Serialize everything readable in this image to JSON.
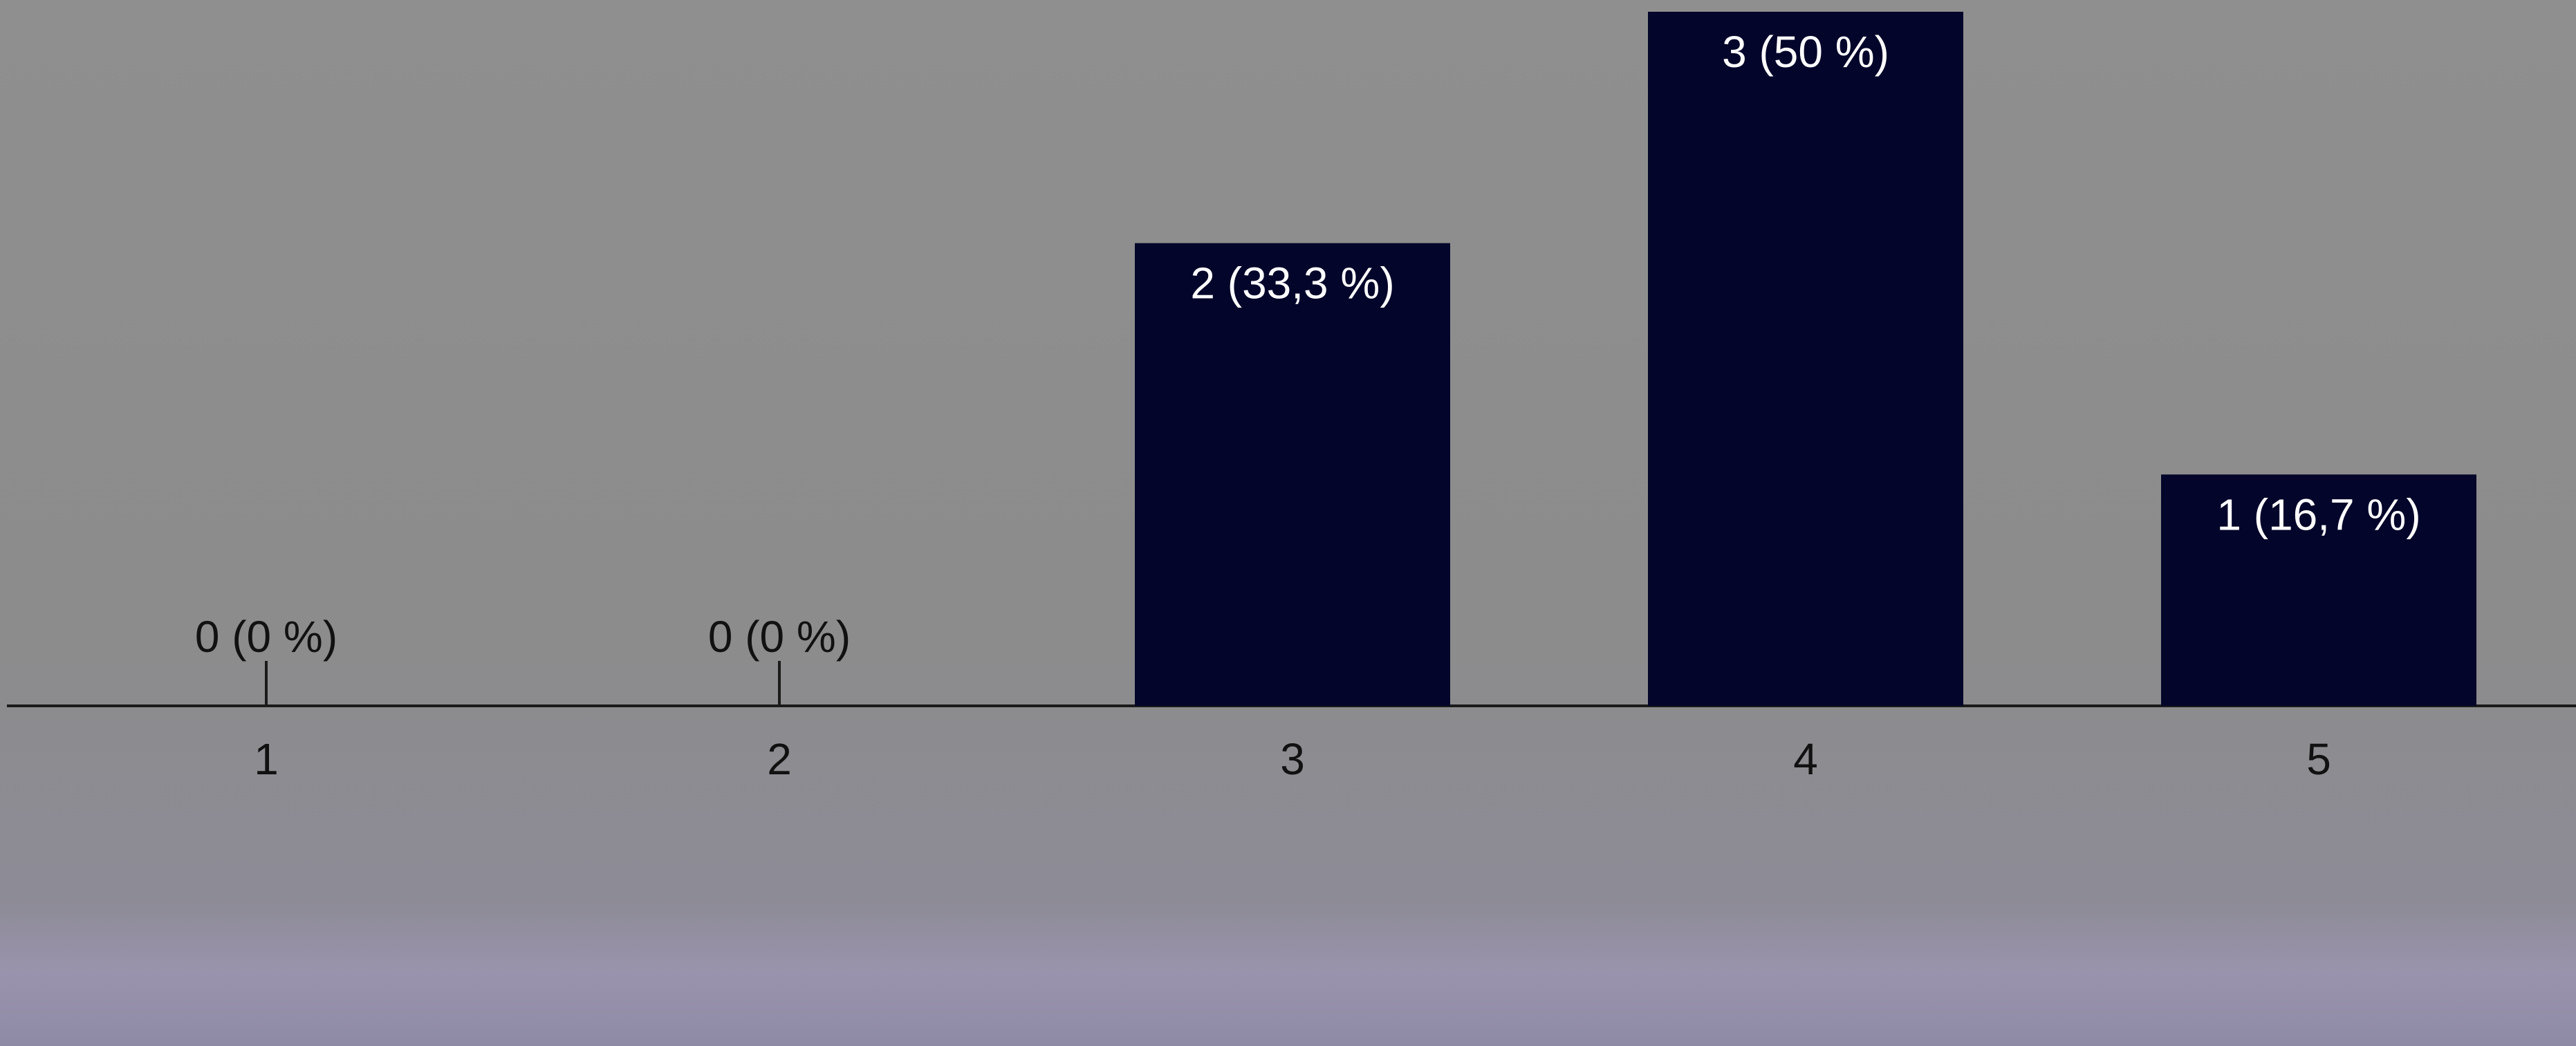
{
  "colors": {
    "bar": "#03052a",
    "bar_label_on_bar": "#ffffff",
    "bar_label_off_bar": "#111111",
    "axis": "#1a1a1a",
    "background_overlay": "#8e8e8e"
  },
  "chart_data": {
    "type": "bar",
    "categories": [
      "1",
      "2",
      "3",
      "4",
      "5"
    ],
    "values": [
      0,
      0,
      2,
      3,
      1
    ],
    "data_labels": [
      "0 (0 %)",
      "0 (0 %)",
      "2 (33,3 %)",
      "3 (50 %)",
      "1 (16,7 %)"
    ],
    "ylim": [
      0,
      3
    ],
    "grid": false,
    "legend": "none",
    "title": "",
    "xlabel": "",
    "ylabel": ""
  }
}
